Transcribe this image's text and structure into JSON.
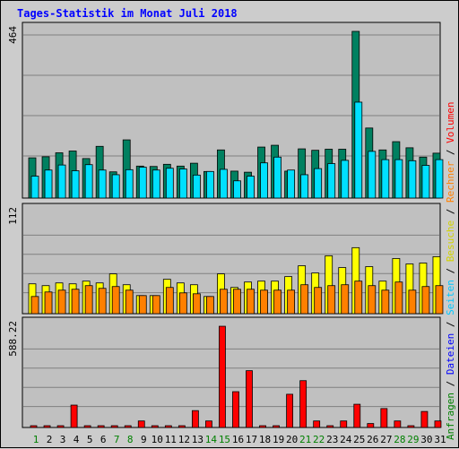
{
  "title": "Tages-Statistik im Monat Juli 2018",
  "chart_data": {
    "type": "bar",
    "title": "Tages-Statistik im Monat Juli 2018",
    "categories": [
      "1",
      "2",
      "3",
      "4",
      "5",
      "6",
      "7",
      "8",
      "9",
      "10",
      "11",
      "12",
      "13",
      "14",
      "15",
      "16",
      "17",
      "18",
      "19",
      "20",
      "21",
      "22",
      "23",
      "24",
      "25",
      "26",
      "27",
      "28",
      "29",
      "30",
      "31"
    ],
    "weekend_days": [
      "1",
      "7",
      "8",
      "14",
      "15",
      "21",
      "22",
      "28",
      "29"
    ],
    "legend": [
      {
        "label": "Anfragen",
        "color": "#008000"
      },
      {
        "label": "Dateien",
        "color": "#0000ff"
      },
      {
        "label": "Seiten",
        "color": "#00c8ff"
      },
      {
        "label": "Besuche",
        "color": "#d2d200"
      },
      {
        "label": "Rechner",
        "color": "#ff8000"
      },
      {
        "label": "Volumen",
        "color": "#ff0000"
      }
    ],
    "panels": [
      {
        "name": "top",
        "max_label": "464",
        "ylim": [
          0,
          464
        ],
        "series": [
          {
            "name": "Anfragen",
            "color": "#008060",
            "values": [
              112,
              115,
              126,
              131,
              110,
              144,
              73,
              162,
              89,
              88,
              94,
              89,
              97,
              74,
              134,
              75,
              72,
              142,
              147,
              75,
              137,
              133,
              136,
              136,
              464,
              195,
              134,
              157,
              140,
              114,
              125
            ]
          },
          {
            "name": "Seiten",
            "color": "#00e0ff",
            "values": [
              61,
              78,
              92,
              76,
              93,
              78,
              65,
              79,
              86,
              78,
              83,
              81,
              64,
              74,
              80,
              48,
              61,
              98,
              114,
              78,
              65,
              82,
              96,
              105,
              267,
              130,
              107,
              107,
              104,
              91,
              107
            ]
          }
        ]
      },
      {
        "name": "middle",
        "max_label": "112",
        "ylim": [
          0,
          112
        ],
        "series": [
          {
            "name": "Besuche",
            "color": "#ffff00",
            "values": [
              33,
              31,
              34,
              33,
              36,
              34,
              44,
              32,
              20,
              20,
              38,
              34,
              32,
              19,
              44,
              29,
              35,
              36,
              36,
              41,
              53,
              45,
              64,
              51,
              73,
              52,
              36,
              61,
              55,
              56,
              63
            ]
          },
          {
            "name": "Rechner",
            "color": "#ff8000",
            "values": [
              19,
              24,
              26,
              27,
              31,
              28,
              30,
              26,
              20,
              20,
              29,
              23,
              22,
              19,
              27,
              27,
              27,
              26,
              26,
              26,
              32,
              29,
              31,
              32,
              36,
              31,
              26,
              35,
              26,
              30,
              31
            ]
          }
        ]
      },
      {
        "name": "bottom",
        "max_label": "588.22",
        "ylim": [
          0,
          588.22
        ],
        "series": [
          {
            "name": "Volumen",
            "color": "#ff0000",
            "values": [
              8,
              8,
              8,
              130,
              8,
              8,
              8,
              8,
              38,
              8,
              8,
              8,
              98,
              38,
              588,
              208,
              330,
              8,
              8,
              193,
              272,
              38,
              8,
              38,
              135,
              23,
              110,
              38,
              8,
              93,
              38
            ]
          }
        ]
      }
    ]
  }
}
